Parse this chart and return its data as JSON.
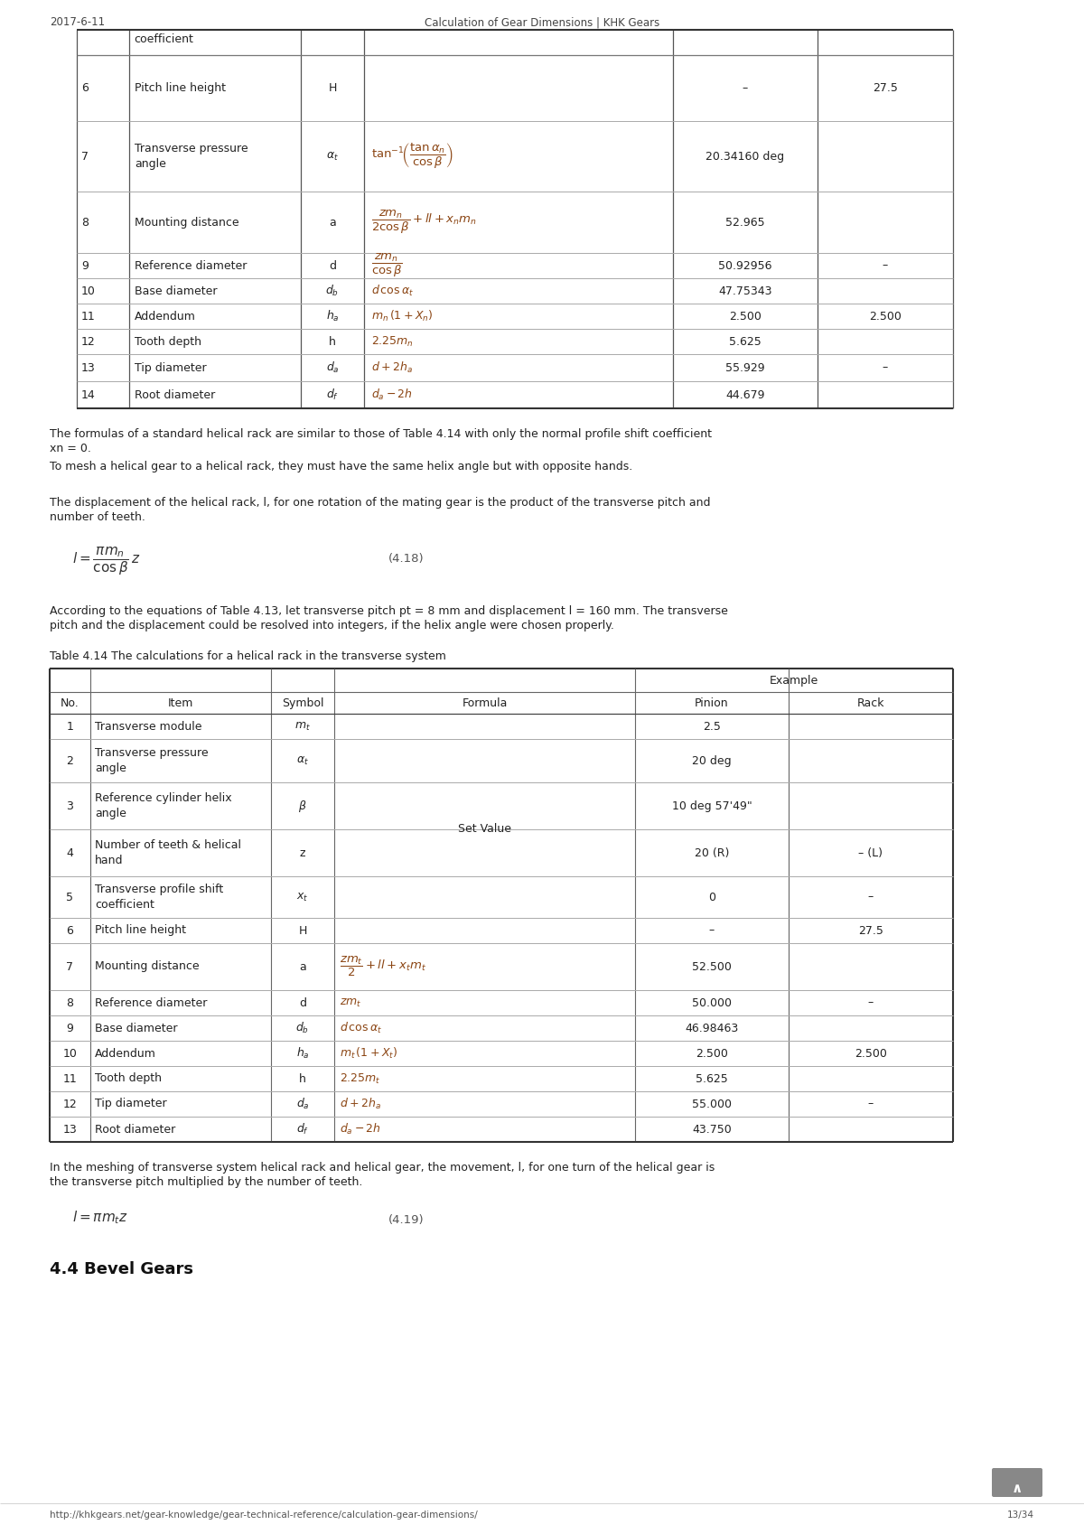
{
  "header_left": "2017-6-11",
  "header_center": "Calculation of Gear Dimensions | KHK Gears",
  "footer_left": "http://khkgears.net/gear-knowledge/gear-technical-reference/calculation-gear-dimensions/",
  "footer_right": "13/34",
  "bg_color": "#ffffff",
  "para1_line1": "The formulas of a standard helical rack are similar to those of Table 4.14 with only the normal profile shift coefficient",
  "para1_line2": "xn = 0.",
  "para1_line3": "To mesh a helical gear to a helical rack, they must have the same helix angle but with opposite hands.",
  "para2_line1": "The displacement of the helical rack, l, for one rotation of the mating gear is the product of the transverse pitch and",
  "para2_line2": "number of teeth.",
  "eq418_label": "(4.18)",
  "para3_line1": "According to the equations of Table 4.13, let transverse pitch pt = 8 mm and displacement l = 160 mm. The transverse",
  "para3_line2": "pitch and the displacement could be resolved into integers, if the helix angle were chosen properly.",
  "table2_caption": "Table 4.14 The calculations for a helical rack in the transverse system",
  "para4_line1": "In the meshing of transverse system helical rack and helical gear, the movement, l, for one turn of the helical gear is",
  "para4_line2": "the transverse pitch multiplied by the number of teeth.",
  "eq419_label": "(4.19)",
  "section_title": "4.4 Bevel Gears"
}
